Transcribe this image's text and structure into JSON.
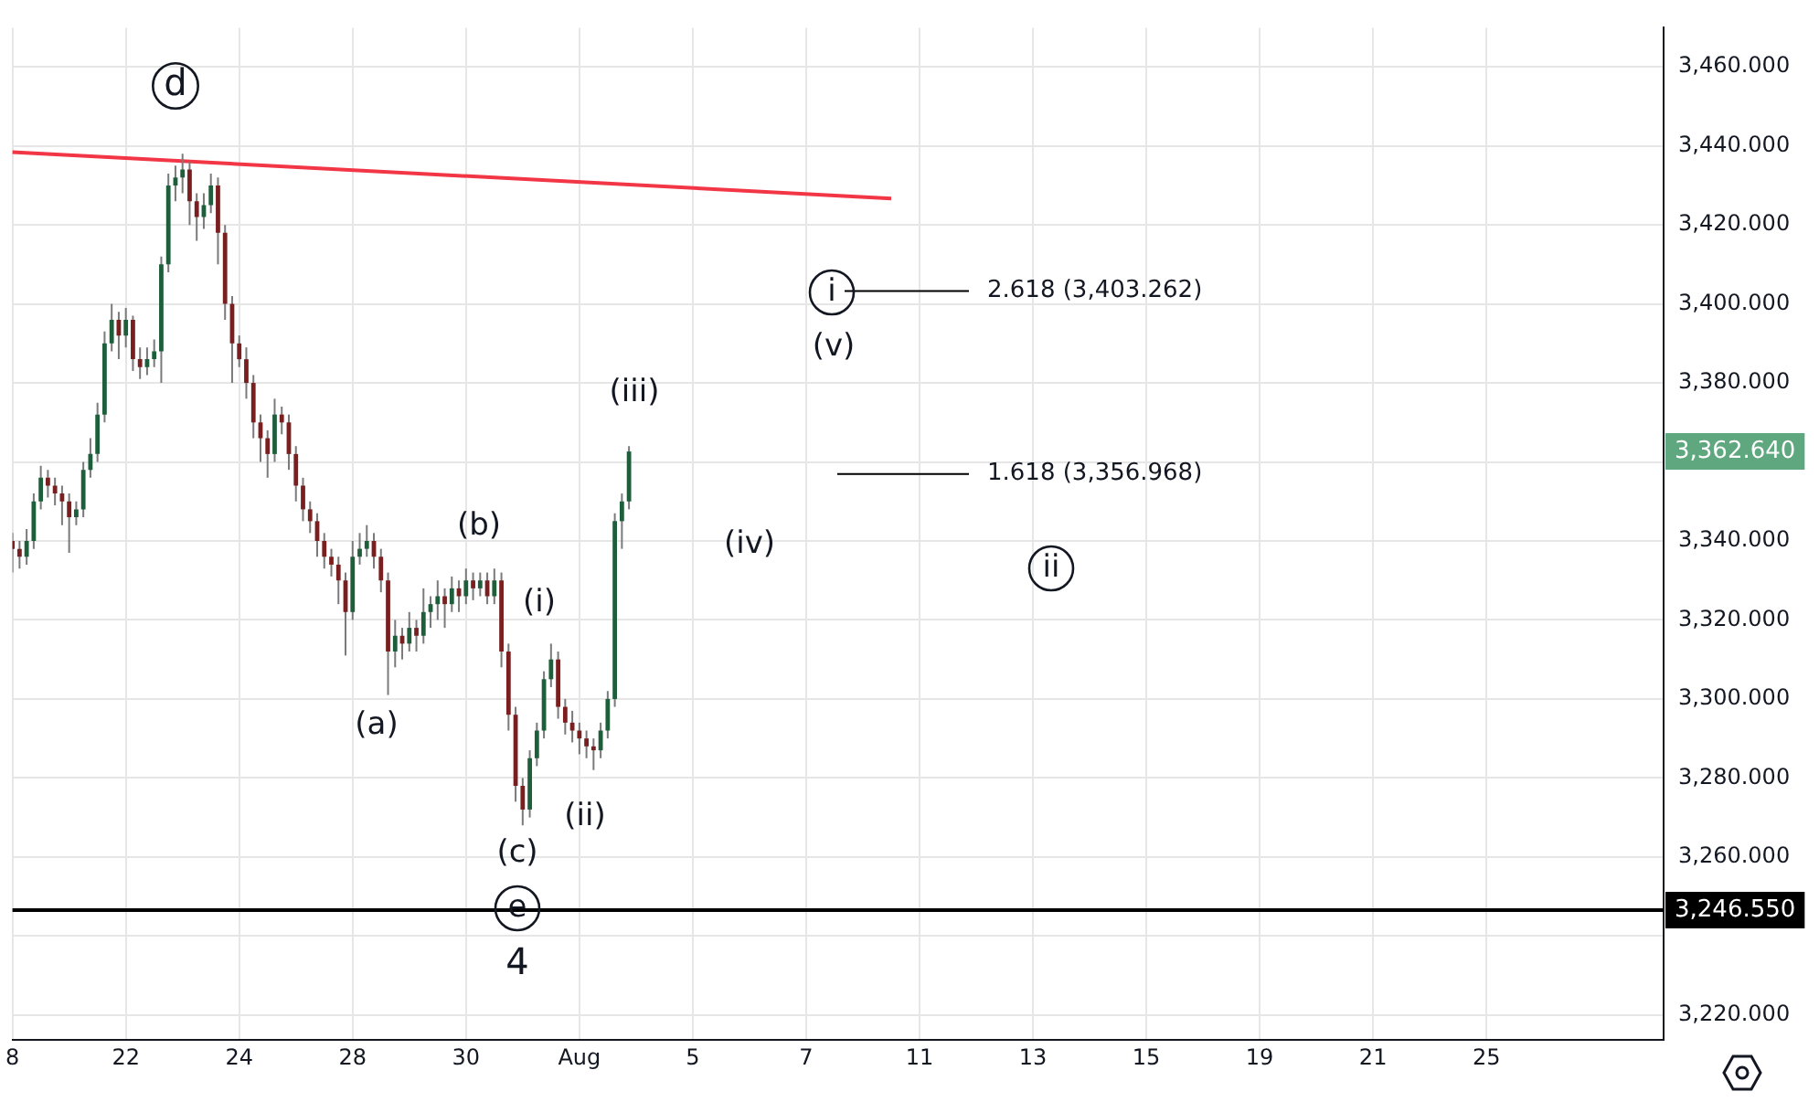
{
  "chart_data": {
    "type": "candlestick",
    "categories": [
      "8",
      null,
      null,
      null,
      null,
      null,
      null,
      null,
      null,
      null,
      null,
      null,
      null,
      null,
      null,
      null,
      "22",
      null,
      null,
      null,
      null,
      null,
      null,
      null,
      null,
      null,
      null,
      null,
      null,
      null,
      null,
      null,
      "24",
      null,
      null,
      null,
      null,
      null,
      null,
      null,
      null,
      null,
      null,
      null,
      null,
      null,
      null,
      null,
      "28",
      null,
      null,
      null,
      null,
      null,
      null,
      null,
      null,
      null,
      null,
      null,
      null,
      null,
      null,
      null,
      "30",
      null,
      null,
      null,
      null,
      null,
      null,
      null,
      null,
      null,
      null,
      null,
      null,
      null,
      null,
      null,
      "Aug",
      null,
      null,
      null,
      null,
      null,
      null,
      null,
      null,
      null,
      null,
      null,
      null,
      null,
      null,
      null,
      "5",
      null,
      null,
      null,
      null,
      null,
      null,
      null,
      null,
      null,
      null,
      null,
      null,
      null,
      null,
      null,
      "7",
      null,
      null,
      null,
      null,
      null,
      null,
      null,
      null,
      null,
      null,
      null,
      null,
      null,
      null,
      null,
      "11",
      null,
      null,
      null,
      null,
      null,
      null,
      null,
      null,
      null,
      null,
      null,
      null,
      null,
      null,
      null,
      "13",
      null,
      null,
      null,
      null,
      null,
      null,
      null,
      null,
      null,
      null,
      null,
      null,
      null,
      null,
      null,
      "15",
      null,
      null,
      null,
      null,
      null,
      null,
      null,
      null,
      null,
      null,
      null,
      null,
      null,
      null,
      null,
      "19",
      null,
      null,
      null,
      null,
      null,
      null,
      null,
      null,
      null,
      null,
      null,
      null,
      null,
      null,
      null,
      "21",
      null,
      null,
      null,
      null,
      null,
      null,
      null,
      null,
      null,
      null,
      null,
      null,
      null,
      null,
      null,
      "25",
      null,
      null,
      null,
      null,
      null,
      null,
      null,
      null,
      null,
      null,
      null,
      null,
      null,
      null,
      null,
      null,
      null,
      null,
      null,
      null,
      null,
      null,
      null,
      null,
      null
    ],
    "ohlc": [
      [
        3340,
        3342,
        3332,
        3338
      ],
      [
        3338,
        3340,
        3333,
        3336
      ],
      [
        3336,
        3343,
        3334,
        3340
      ],
      [
        3340,
        3352,
        3338,
        3350
      ],
      [
        3350,
        3359,
        3348,
        3356
      ],
      [
        3356,
        3358,
        3351,
        3354
      ],
      [
        3354,
        3356,
        3349,
        3352
      ],
      [
        3352,
        3354,
        3344,
        3350
      ],
      [
        3350,
        3352,
        3337,
        3346
      ],
      [
        3346,
        3350,
        3344,
        3348
      ],
      [
        3348,
        3360,
        3346,
        3358
      ],
      [
        3358,
        3366,
        3356,
        3362
      ],
      [
        3362,
        3375,
        3360,
        3372
      ],
      [
        3372,
        3393,
        3370,
        3390
      ],
      [
        3390,
        3400,
        3388,
        3396
      ],
      [
        3396,
        3398,
        3386,
        3392
      ],
      [
        3392,
        3399,
        3389,
        3396
      ],
      [
        3396,
        3397,
        3383,
        3386
      ],
      [
        3386,
        3389,
        3381,
        3384
      ],
      [
        3384,
        3389,
        3382,
        3386
      ],
      [
        3386,
        3391,
        3384,
        3388
      ],
      [
        3388,
        3412,
        3380,
        3410
      ],
      [
        3410,
        3433,
        3408,
        3430
      ],
      [
        3430,
        3435,
        3426,
        3432
      ],
      [
        3432,
        3438,
        3428,
        3434
      ],
      [
        3434,
        3436,
        3420,
        3426
      ],
      [
        3426,
        3428,
        3416,
        3422
      ],
      [
        3422,
        3428,
        3419,
        3425
      ],
      [
        3425,
        3433,
        3423,
        3430
      ],
      [
        3430,
        3432,
        3410,
        3418
      ],
      [
        3418,
        3420,
        3396,
        3400
      ],
      [
        3400,
        3402,
        3380,
        3390
      ],
      [
        3390,
        3392,
        3384,
        3386
      ],
      [
        3386,
        3389,
        3376,
        3380
      ],
      [
        3380,
        3382,
        3366,
        3370
      ],
      [
        3370,
        3372,
        3360,
        3366
      ],
      [
        3366,
        3368,
        3356,
        3362
      ],
      [
        3362,
        3376,
        3360,
        3372
      ],
      [
        3372,
        3374,
        3367,
        3370
      ],
      [
        3370,
        3372,
        3358,
        3362
      ],
      [
        3362,
        3364,
        3350,
        3354
      ],
      [
        3354,
        3356,
        3345,
        3348
      ],
      [
        3348,
        3350,
        3342,
        3345
      ],
      [
        3345,
        3347,
        3336,
        3340
      ],
      [
        3340,
        3342,
        3333,
        3336
      ],
      [
        3336,
        3338,
        3331,
        3334
      ],
      [
        3334,
        3336,
        3324,
        3330
      ],
      [
        3330,
        3332,
        3311,
        3322
      ],
      [
        3322,
        3340,
        3320,
        3336
      ],
      [
        3336,
        3342,
        3334,
        3338
      ],
      [
        3338,
        3344,
        3336,
        3340
      ],
      [
        3340,
        3342,
        3333,
        3336
      ],
      [
        3336,
        3338,
        3327,
        3330
      ],
      [
        3330,
        3332,
        3301,
        3312
      ],
      [
        3312,
        3320,
        3308,
        3316
      ],
      [
        3316,
        3318,
        3310,
        3314
      ],
      [
        3314,
        3322,
        3312,
        3318
      ],
      [
        3318,
        3320,
        3312,
        3316
      ],
      [
        3316,
        3328,
        3314,
        3322
      ],
      [
        3322,
        3326,
        3318,
        3324
      ],
      [
        3324,
        3330,
        3320,
        3326
      ],
      [
        3326,
        3328,
        3318,
        3324
      ],
      [
        3324,
        3331,
        3322,
        3328
      ],
      [
        3328,
        3330,
        3322,
        3326
      ],
      [
        3326,
        3333,
        3324,
        3330
      ],
      [
        3330,
        3332,
        3325,
        3328
      ],
      [
        3328,
        3332,
        3326,
        3330
      ],
      [
        3330,
        3332,
        3324,
        3326
      ],
      [
        3326,
        3333,
        3324,
        3330
      ],
      [
        3330,
        3332,
        3308,
        3312
      ],
      [
        3312,
        3314,
        3292,
        3296
      ],
      [
        3296,
        3298,
        3274,
        3278
      ],
      [
        3278,
        3280,
        3268,
        3272
      ],
      [
        3272,
        3287,
        3270,
        3285
      ],
      [
        3285,
        3294,
        3283,
        3292
      ],
      [
        3292,
        3307,
        3290,
        3305
      ],
      [
        3305,
        3314,
        3303,
        3310
      ],
      [
        3310,
        3312,
        3295,
        3298
      ],
      [
        3298,
        3300,
        3291,
        3294
      ],
      [
        3294,
        3297,
        3289,
        3292
      ],
      [
        3292,
        3294,
        3286,
        3290
      ],
      [
        3290,
        3292,
        3285,
        3288
      ],
      [
        3288,
        3290,
        3282,
        3287
      ],
      [
        3287,
        3294,
        3285,
        3292
      ],
      [
        3292,
        3302,
        3290,
        3300
      ],
      [
        3300,
        3347,
        3298,
        3345
      ],
      [
        3345,
        3352,
        3338,
        3350
      ],
      [
        3350,
        3364,
        3348,
        3362.64
      ],
      null,
      null,
      null,
      null,
      null,
      null,
      null,
      null,
      null,
      null,
      null,
      null,
      null,
      null,
      null,
      null,
      null,
      null,
      null,
      null,
      null,
      null,
      null,
      null,
      null,
      null,
      null,
      null,
      null,
      null,
      null,
      null,
      null,
      null,
      null,
      null,
      null,
      null,
      null,
      null,
      null,
      null,
      null,
      null,
      null,
      null,
      null,
      null,
      null,
      null,
      null,
      null,
      null,
      null,
      null,
      null,
      null,
      null,
      null,
      null,
      null,
      null,
      null,
      null,
      null,
      null,
      null,
      null,
      null,
      null,
      null,
      null,
      null,
      null,
      null,
      null,
      null,
      null,
      null,
      null,
      null,
      null,
      null,
      null,
      null,
      null,
      null,
      null,
      null,
      null,
      null,
      null,
      null,
      null,
      null,
      null,
      null,
      null,
      null,
      null,
      null,
      null,
      null,
      null,
      null,
      null,
      null,
      null,
      null,
      null,
      null,
      null,
      null,
      null,
      null,
      null,
      null,
      null,
      null,
      null,
      null,
      null,
      null,
      null,
      null,
      null,
      null,
      null,
      null,
      null,
      null,
      null,
      null,
      null,
      null,
      null,
      null,
      null,
      null,
      null,
      null,
      null,
      null,
      null,
      null,
      null
    ],
    "series": [
      {
        "type": "line",
        "color": "#f23645",
        "values": [
          3438.4,
          null,
          null,
          null,
          null,
          null,
          null,
          null,
          null,
          null,
          null,
          null,
          null,
          null,
          null,
          null,
          null,
          null,
          null,
          null,
          null,
          null,
          null,
          null,
          null,
          null,
          null,
          null,
          null,
          null,
          null,
          null,
          null,
          null,
          null,
          null,
          null,
          null,
          null,
          null,
          null,
          null,
          null,
          null,
          null,
          null,
          null,
          null,
          null,
          null,
          null,
          null,
          null,
          null,
          null,
          null,
          null,
          null,
          null,
          null,
          null,
          null,
          null,
          null,
          null,
          null,
          null,
          null,
          null,
          null,
          null,
          null,
          null,
          null,
          null,
          null,
          null,
          null,
          null,
          null,
          null,
          null,
          null,
          null,
          null,
          null,
          null,
          null,
          null,
          null,
          null,
          null,
          null,
          null,
          null,
          null,
          null,
          null,
          null,
          null,
          null,
          null,
          null,
          null,
          null,
          null,
          null,
          null,
          null,
          null,
          null,
          null,
          null,
          null,
          null,
          null,
          null,
          null,
          null,
          null,
          null,
          null,
          null,
          null,
          3426.7,
          null,
          null,
          null,
          null,
          null,
          null,
          null,
          null,
          null,
          null,
          null,
          null,
          null,
          null,
          null,
          null,
          null,
          null,
          null,
          null,
          null,
          null,
          null,
          null,
          null,
          null,
          null,
          null,
          null,
          null,
          null,
          null,
          null,
          null,
          null,
          null,
          null,
          null,
          null,
          null,
          null,
          null,
          null,
          null,
          null,
          null,
          null,
          null,
          null,
          null,
          null,
          null,
          null,
          null,
          null,
          null,
          null,
          null,
          null,
          null,
          null,
          null,
          null,
          null,
          null,
          null,
          null,
          null,
          null,
          null,
          null,
          null,
          null,
          null,
          null,
          null,
          null,
          null,
          null,
          null,
          null,
          null,
          null,
          null,
          null,
          null,
          null,
          null,
          null,
          null,
          null,
          null,
          null,
          null,
          null,
          null,
          null,
          null,
          null,
          null,
          null,
          null,
          null,
          null,
          null,
          null,
          null,
          null,
          null
        ]
      }
    ],
    "ref_lines": [
      {
        "axis": "y",
        "value": 3246.55,
        "label": "3,246.550",
        "color": "#000000"
      },
      {
        "axis": "y",
        "value": 3403.262,
        "label": "2.618 (3,403.262)",
        "color": "#000000"
      },
      {
        "axis": "y",
        "value": 3356.968,
        "label": "1.618 (3,356.968)",
        "color": "#000000"
      }
    ],
    "annotations": [
      "d",
      "(a)",
      "(b)",
      "(c)",
      "(i)",
      "(ii)",
      "(iii)",
      "(iv)",
      "(v)",
      "i",
      "ii",
      "e",
      "4",
      "3,362.640"
    ],
    "ylim": [
      3213.7,
      3469.9
    ],
    "yticks": [
      {
        "value": 3220,
        "label": "3,220.000"
      },
      {
        "value": 3240,
        "label": null
      },
      {
        "value": 3260,
        "label": "3,260.000"
      },
      {
        "value": 3280,
        "label": "3,280.000"
      },
      {
        "value": 3300,
        "label": "3,300.000"
      },
      {
        "value": 3320,
        "label": "3,320.000"
      },
      {
        "value": 3340,
        "label": "3,340.000"
      },
      {
        "value": 3360,
        "label": null
      },
      {
        "value": 3380,
        "label": "3,380.000"
      },
      {
        "value": 3400,
        "label": "3,400.000"
      },
      {
        "value": 3420,
        "label": "3,420.000"
      },
      {
        "value": 3440,
        "label": "3,440.000"
      },
      {
        "value": 3460,
        "label": "3,460.000"
      }
    ],
    "grid": true,
    "legend": false
  }
}
